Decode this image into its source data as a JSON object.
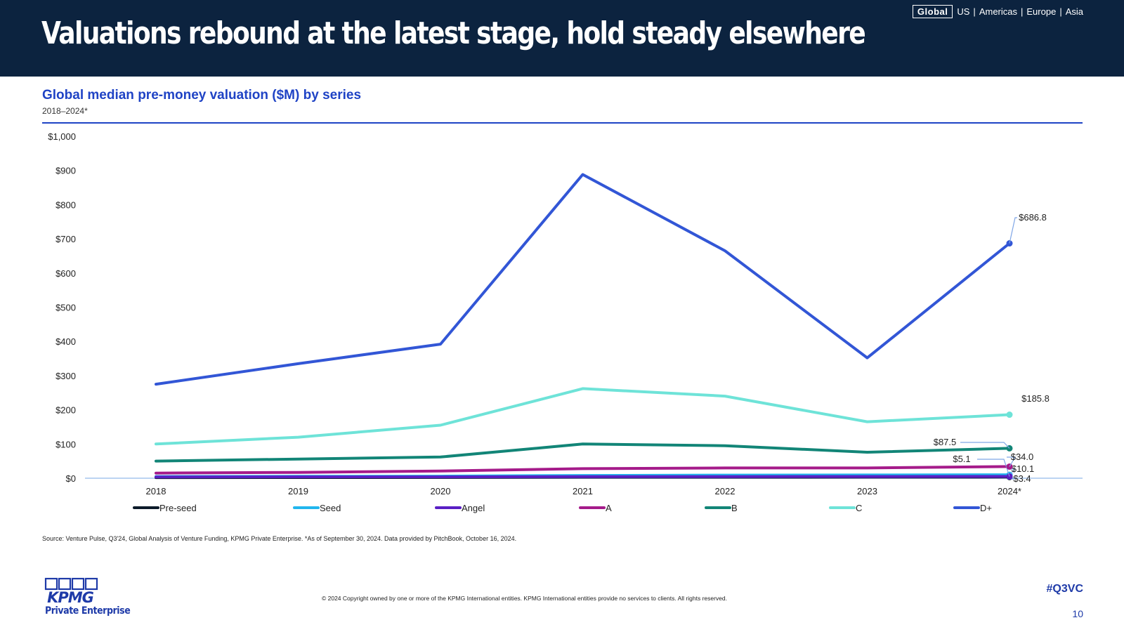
{
  "header": {
    "title": "Valuations rebound at the latest stage, hold steady elsewhere",
    "regions": {
      "active": "Global",
      "others": [
        "US",
        "Americas",
        "Europe",
        "Asia"
      ]
    }
  },
  "chart_data": {
    "type": "line",
    "title": "Global median pre-money valuation ($M) by series",
    "subtitle": "2018–2024*",
    "categories": [
      "2018",
      "2019",
      "2020",
      "2021",
      "2022",
      "2023",
      "2024*"
    ],
    "ylim": [
      0,
      1000
    ],
    "yticks": [
      0,
      100,
      200,
      300,
      400,
      500,
      600,
      700,
      800,
      900,
      1000
    ],
    "ytick_labels": [
      "$0",
      "$100",
      "$200",
      "$300",
      "$400",
      "$500",
      "$600",
      "$700",
      "$800",
      "$900",
      "$1,000"
    ],
    "grid": false,
    "legend": "bottom",
    "series": [
      {
        "name": "Pre-seed",
        "color": "#0d1b2a",
        "values": [
          1.8,
          2.0,
          2.3,
          3.0,
          3.0,
          3.2,
          3.4
        ],
        "end_label": "$3.4"
      },
      {
        "name": "Seed",
        "color": "#21b6ee",
        "values": [
          5.0,
          5.5,
          6.0,
          8.0,
          9.0,
          9.5,
          10.1
        ],
        "end_label": "$10.1"
      },
      {
        "name": "Angel",
        "color": "#5a1fc4",
        "values": [
          3.5,
          3.8,
          4.0,
          4.5,
          4.8,
          5.0,
          5.1
        ],
        "end_label": "$5.1"
      },
      {
        "name": "A",
        "color": "#a51b8a",
        "values": [
          15,
          17,
          21,
          28,
          30,
          30,
          34.0
        ],
        "end_label": "$34.0"
      },
      {
        "name": "B",
        "color": "#128577",
        "values": [
          50,
          56,
          62,
          100,
          95,
          76,
          87.5
        ],
        "end_label": "$87.5"
      },
      {
        "name": "C",
        "color": "#6ee3d8",
        "values": [
          100,
          120,
          155,
          262,
          240,
          165,
          185.8
        ],
        "end_label": "$185.8"
      },
      {
        "name": "D+",
        "color": "#3256d6",
        "values": [
          275,
          335,
          392,
          888,
          665,
          352,
          686.8
        ],
        "end_label": "$686.8"
      }
    ]
  },
  "source": "Source: Venture Pulse, Q3'24, Global Analysis of Venture Funding, KPMG Private Enterprise. *As of September 30, 2024. Data provided by PitchBook, October 16, 2024.",
  "footer": {
    "logo_text": "KPMG",
    "logo_subtitle": "Private Enterprise",
    "copyright": "© 2024 Copyright owned by one or more of the KPMG International entities. KPMG International entities provide no services to clients. All rights reserved.",
    "hashtag": "#Q3VC",
    "page_number": "10"
  }
}
